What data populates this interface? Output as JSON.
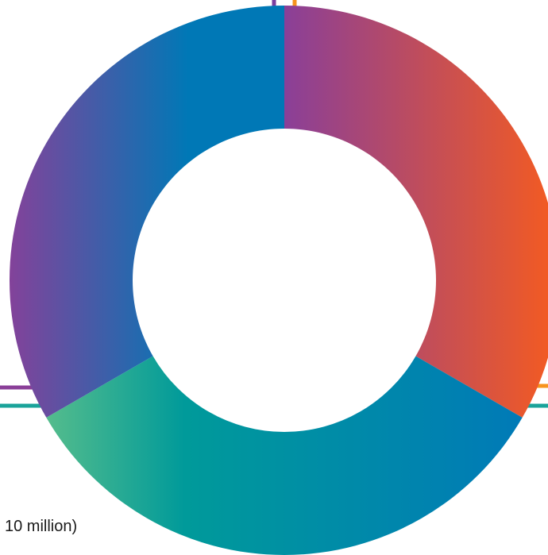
{
  "chart_data": {
    "type": "pie",
    "variant": "donut",
    "title": "",
    "categories": [
      "",
      "",
      ""
    ],
    "values": [
      33.33,
      33.34,
      33.33
    ],
    "segment_colors": [
      [
        "#8a3f98",
        "#f15a24"
      ],
      [
        "#5bbf8b",
        "#009a9a",
        "#0079b8"
      ],
      [
        "#83429a",
        "#0078b6"
      ]
    ],
    "leader_line_colors": [
      "#7b3fa0",
      "#f7941d",
      "#8a3f98",
      "#f7941d",
      "#1aa39a",
      "#1aa39a"
    ],
    "legend": "none",
    "grid": false
  },
  "annotations": {
    "fragment_text": "10 million)"
  }
}
